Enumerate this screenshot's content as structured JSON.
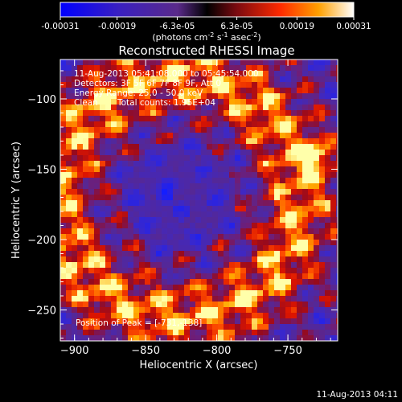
{
  "chart_data": {
    "type": "heatmap",
    "title": "Reconstructed RHESSI Image",
    "xlabel": "Heliocentric X (arcsec)",
    "ylabel": "Heliocentric Y (arcsec)",
    "xlim": [
      -910,
      -715
    ],
    "ylim": [
      -272,
      -72
    ],
    "xticks": [
      -900,
      -850,
      -800,
      -750
    ],
    "yticks": [
      -250,
      -200,
      -150,
      -100
    ],
    "colorbar": {
      "ticks": [
        "-0.00031",
        "-0.00019",
        "-6.3e-05",
        "6.3e-05",
        "0.00019",
        "0.00031"
      ],
      "unit_main": "(photons cm",
      "unit_sup1": "-2",
      "unit_mid": " s",
      "unit_sup2": "-1",
      "unit_mid2": " asec",
      "unit_sup3": "-2",
      "unit_end": ")",
      "range": [
        -0.00031,
        0.00031
      ]
    },
    "info": {
      "time_range": "11-Aug-2013 05:41:08.000 to 05:45:54.000",
      "detectors": "Detectors: 3F 5F 6F 7F 8F 9F, Att 0",
      "energy": "Energy Range: 25.0 - 50.0 keV",
      "algorithm": "Clean",
      "counts": "Total counts: 1.95E+04"
    },
    "peak": {
      "text": "Position of Peak = [-731,-138]",
      "x": -731,
      "y": -138
    }
  },
  "footer": {
    "timestamp": "11-Aug-2013 04:11"
  },
  "colors": {
    "background": "#000000",
    "axes": "#ffffff",
    "low": "#2020ff",
    "mid": "#5a2a9a",
    "high": "#ff3000",
    "peak": "#ffffa0"
  }
}
